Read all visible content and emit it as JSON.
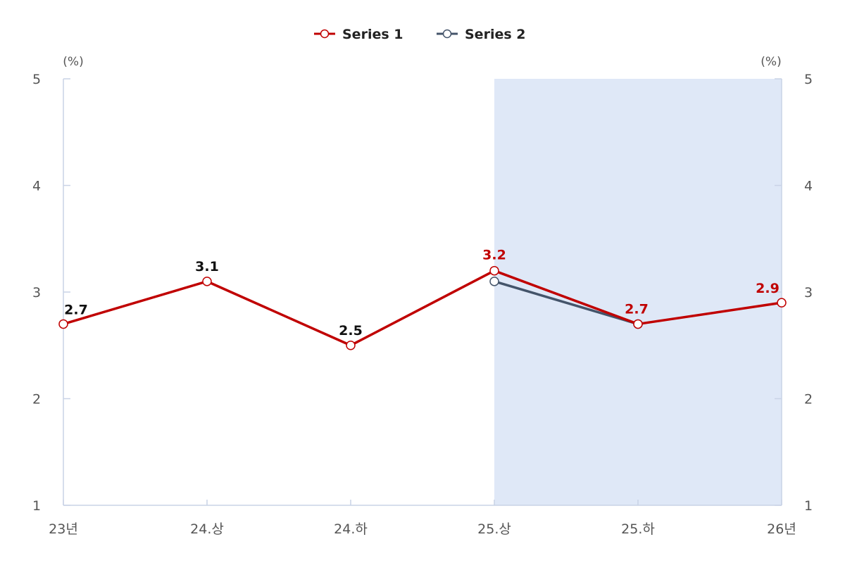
{
  "chart_data": {
    "type": "line",
    "categories": [
      "23년",
      "24.상",
      "24.하",
      "25.상",
      "25.하",
      "26년"
    ],
    "series": [
      {
        "name": "Series 1",
        "color": "#c00000",
        "values": [
          2.7,
          3.1,
          2.5,
          3.2,
          2.7,
          2.9
        ],
        "label_colors": [
          "#111111",
          "#111111",
          "#111111",
          "#c00000",
          "#c00000",
          "#c00000"
        ]
      },
      {
        "name": "Series 2",
        "color": "#44546a",
        "values": [
          null,
          null,
          null,
          3.1,
          2.7,
          null
        ]
      }
    ],
    "ylim": [
      1,
      5
    ],
    "yticks": [
      1,
      2,
      3,
      4,
      5
    ],
    "y_unit_left": "(%)",
    "y_unit_right": "(%)",
    "shaded_range": [
      "25.상",
      "26년"
    ],
    "shade_color": "#dfe8f7",
    "legend_position": "top-center",
    "grid": false,
    "title": "",
    "xlabel": "",
    "ylabel": ""
  }
}
